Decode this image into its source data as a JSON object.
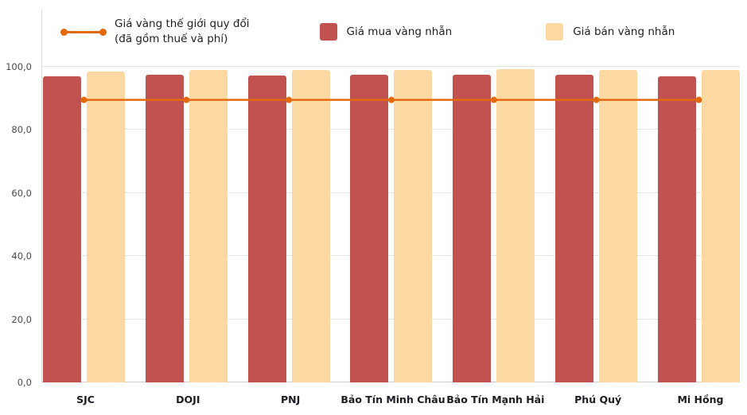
{
  "chart_data": {
    "type": "bar",
    "categories": [
      "SJC",
      "DOJI",
      "PNJ",
      "Bảo Tín Minh Châu",
      "Bảo Tín Mạnh Hải",
      "Phú Quý",
      "Mi Hồng"
    ],
    "series": [
      {
        "name": "Giá mua vàng nhẫn",
        "kind": "bar",
        "color": "#c25250",
        "values": [
          96.9,
          97.4,
          97.2,
          97.5,
          97.6,
          97.4,
          97.1
        ]
      },
      {
        "name": "Giá bán vàng nhẫn",
        "kind": "bar",
        "color": "#fcd9a3",
        "values": [
          98.4,
          99.0,
          98.9,
          99.1,
          99.3,
          99.0,
          98.9
        ]
      },
      {
        "name": "Giá vàng thế giới quy đổi (đã gồm thuế và phí)",
        "kind": "line",
        "color": "#e4690e",
        "values": [
          89.5,
          89.5,
          89.5,
          89.5,
          89.5,
          89.5,
          89.5
        ]
      }
    ],
    "title": "",
    "xlabel": "",
    "ylabel": "",
    "ylim": [
      0,
      100
    ],
    "ytick_step": 20,
    "ytick_labels": [
      "0,0",
      "20,0",
      "40,0",
      "60,0",
      "80,0",
      "100,0"
    ],
    "grid": true,
    "legend_position": "top"
  },
  "legend": {
    "line_label_line1": "Giá vàng thế giới quy đổi",
    "line_label_line2": "(đã gồm thuế và phí)",
    "buy_label": "Giá mua vàng nhẫn",
    "sell_label": "Giá bán vàng nhẫn"
  }
}
